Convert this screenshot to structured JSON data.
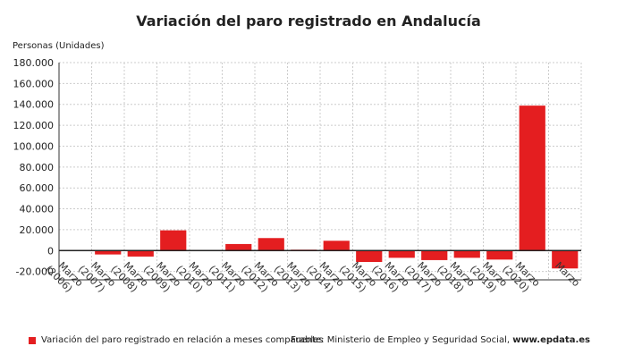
{
  "chart_data": {
    "type": "bar",
    "title": "Variación del paro registrado en Andalucía",
    "ylabel": "Personas (Unidades)",
    "categories": [
      "Marzo (2006)",
      "Marzo (2007)",
      "Marzo (2008)",
      "Marzo (2009)",
      "Marzo (2010)",
      "Marzo (2011)",
      "Marzo (2012)",
      "Marzo (2013)",
      "Marzo (2014)",
      "Marzo (2015)",
      "Marzo (2016)",
      "Marzo (2017)",
      "Marzo (2018)",
      "Marzo (2019)",
      "Marzo (2020)",
      "Marzo"
    ],
    "series": [
      {
        "name": "Variación del paro registrado en relación a meses comparables",
        "values": [
          0,
          -3700,
          -5700,
          19400,
          300,
          6300,
          12000,
          900,
          9400,
          -10900,
          -6900,
          -9100,
          -6900,
          -8600,
          138800,
          -17100
        ]
      }
    ],
    "ylim": [
      -28000,
      180000
    ],
    "yticks": [
      -20000,
      0,
      20000,
      40000,
      60000,
      80000,
      100000,
      120000,
      140000,
      160000,
      180000
    ],
    "ytick_labels": [
      "-20.000",
      "0",
      "20.000",
      "40.000",
      "60.000",
      "80.000",
      "100.000",
      "120.000",
      "140.000",
      "160.000",
      "180.000"
    ],
    "grid": true,
    "legend_position": "bottom-left",
    "color": "#e41e20"
  },
  "source": {
    "prefix": "Fuente: Ministerio de Empleo y Seguridad Social, ",
    "site": "www.epdata.es"
  }
}
